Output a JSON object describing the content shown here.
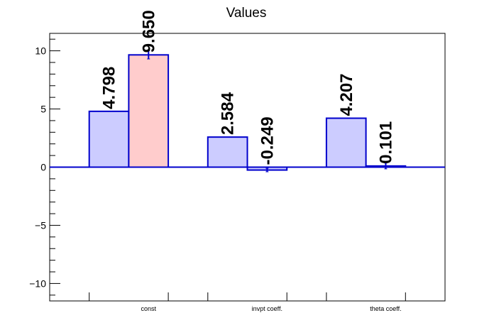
{
  "chart_data": {
    "type": "bar",
    "title": "Values",
    "xlabel": "",
    "ylabel": "",
    "categories": [
      "const",
      "invpt coeff.",
      "theta coeff."
    ],
    "ylim": [
      -11.5,
      11.5
    ],
    "yticks": [
      10,
      5,
      0,
      -5,
      -10
    ],
    "ytick_labels": [
      "10",
      "5",
      "0",
      "−5",
      "−10"
    ],
    "grid": false,
    "legend": "none",
    "bars": [
      {
        "category": "const",
        "value": 4.798,
        "label": "4.798",
        "error": 0
      },
      {
        "category": "const",
        "value": 9.65,
        "label": "9.650",
        "error": 0.35
      },
      {
        "category": "invpt coeff.",
        "value": 2.584,
        "label": "2.584",
        "error": 0
      },
      {
        "category": "invpt coeff.",
        "value": -0.249,
        "label": "-0.249",
        "error": 0.15
      },
      {
        "category": "theta coeff.",
        "value": 4.207,
        "label": "4.207",
        "error": 0
      },
      {
        "category": "theta coeff.",
        "value": 0.101,
        "label": "0.101",
        "error": 0.25
      }
    ],
    "colors": {
      "bar_fill": "#ccccff",
      "bar_fill_highlight": "#ffcccc",
      "bar_stroke": "#0000cc",
      "axis": "#000000"
    }
  }
}
